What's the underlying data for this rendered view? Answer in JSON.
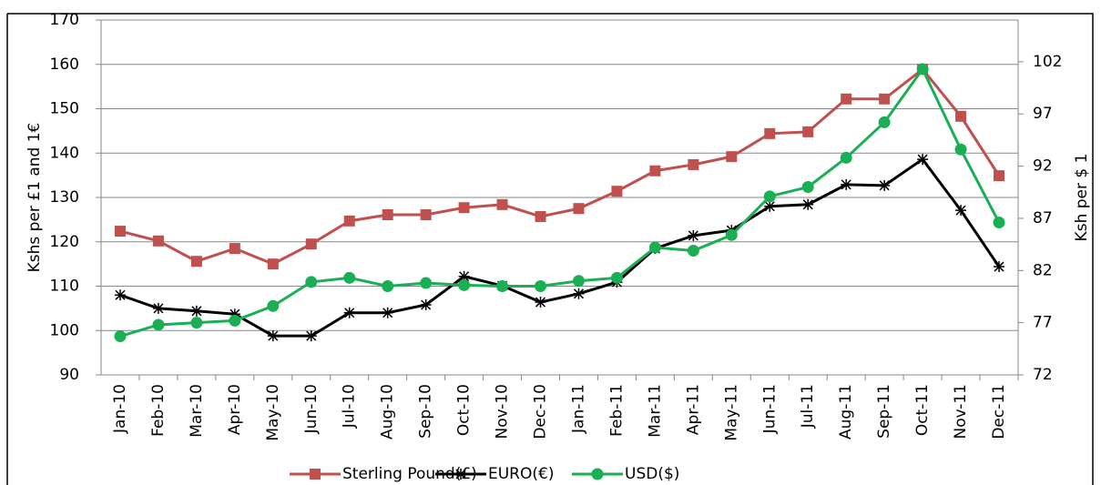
{
  "chart_data": {
    "type": "line",
    "categories": [
      "Jan-10",
      "Feb-10",
      "Mar-10",
      "Apr-10",
      "May-10",
      "Jun-10",
      "Jul-10",
      "Aug-10",
      "Sep-10",
      "Oct-10",
      "Nov-10",
      "Dec-10",
      "Jan-11",
      "Feb-11",
      "Mar-11",
      "Apr-11",
      "May-11",
      "Jun-11",
      "Jul-11",
      "Aug-11",
      "Sep-11",
      "Oct-11",
      "Nov-11",
      "Dec-11"
    ],
    "series": [
      {
        "name": "Sterling Pound(£)",
        "color": "#c0504d",
        "marker": "square",
        "values": [
          122.4,
          120.2,
          115.6,
          118.5,
          115.0,
          119.5,
          124.7,
          126.1,
          126.1,
          127.7,
          128.4,
          125.7,
          127.5,
          131.4,
          136.0,
          137.4,
          139.2,
          144.4,
          144.8,
          152.2,
          152.2,
          158.9,
          148.3,
          134.9
        ]
      },
      {
        "name": "EURO(€)",
        "color": "#000000",
        "marker": "star",
        "values": [
          108.0,
          105.0,
          104.4,
          103.7,
          98.8,
          98.8,
          104.0,
          104.0,
          105.8,
          112.2,
          110.1,
          106.4,
          108.3,
          110.9,
          118.5,
          121.4,
          122.6,
          128.0,
          128.4,
          132.9,
          132.7,
          138.6,
          127.1,
          114.4
        ]
      },
      {
        "name": "USD($)",
        "color": "#1aaf54",
        "marker": "circle",
        "axis": "y2",
        "values": [
          75.7,
          76.8,
          77.0,
          77.2,
          78.6,
          80.9,
          81.3,
          80.5,
          80.8,
          80.6,
          80.5,
          80.5,
          81.0,
          81.3,
          84.2,
          83.9,
          85.4,
          89.1,
          90.0,
          92.8,
          96.2,
          101.3,
          93.6,
          86.6
        ]
      }
    ],
    "ylabel": "Kshs per £1 and 1€",
    "y2label": "Ksh per $ 1",
    "ylim": [
      90,
      170
    ],
    "yticks": [
      90,
      100,
      110,
      120,
      130,
      140,
      150,
      160,
      170
    ],
    "y2lim": [
      72,
      106
    ],
    "y2ticks": [
      72,
      77,
      82,
      87,
      92,
      97,
      102
    ],
    "grid": true,
    "legend": "bottom"
  }
}
